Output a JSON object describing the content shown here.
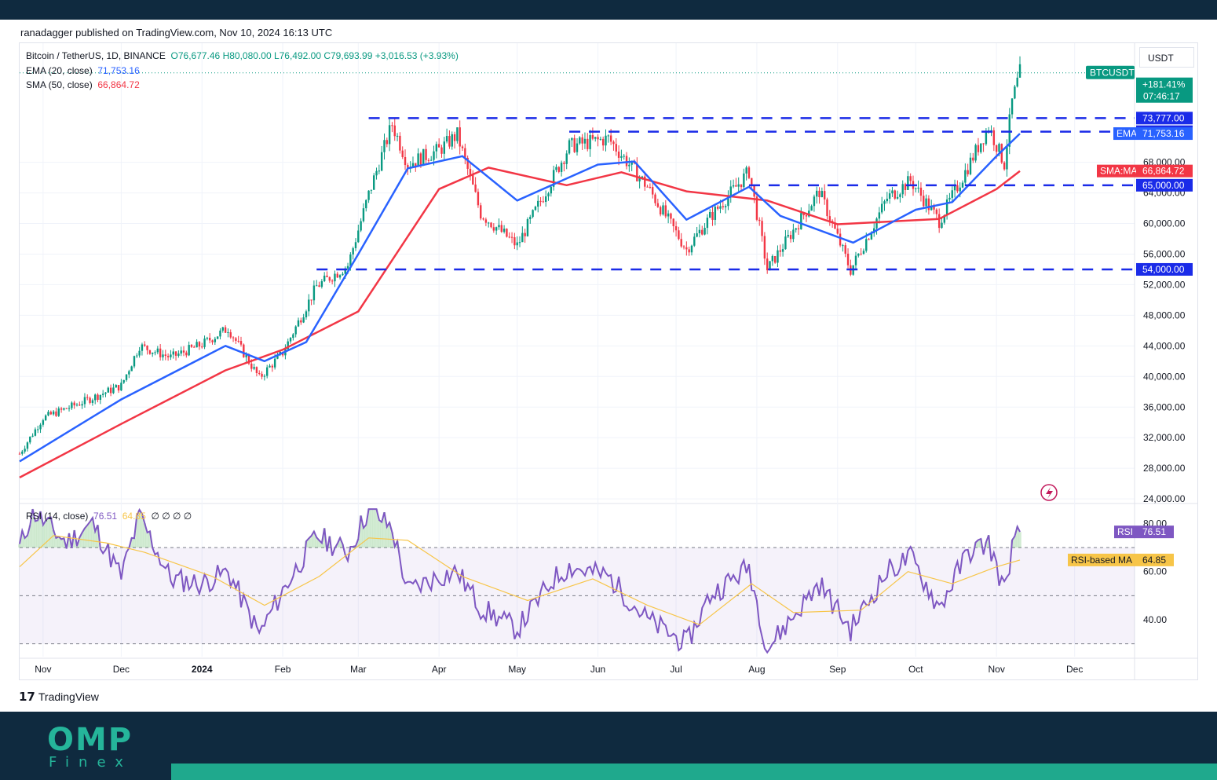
{
  "publish_line": "ranadagger published on TradingView.com, Nov 10, 2024 16:13 UTC",
  "legend": {
    "symbol": "Bitcoin / TetherUS, 1D, BINANCE",
    "ohlc": "O76,677.46 H80,080.00 L76,492.00 C79,693.99 +3,016.53 (+3.93%)",
    "ema_label": "EMA (20, close)",
    "ema_value": "71,753.16",
    "sma_label": "SMA (50, close)",
    "sma_value": "66,864.72",
    "rsi_label": "RSI (14, close)",
    "rsi_value": "76.51",
    "rsi_ma_value": "64.85",
    "rsi_extra": "∅ ∅ ∅ ∅"
  },
  "unit_button": "USDT",
  "footer": {
    "tradingview": "TradingView",
    "brand_top": "OMP",
    "brand_bottom": "Finex"
  },
  "colors": {
    "up": "#089981",
    "down": "#f23645",
    "ema": "#2962ff",
    "sma": "#f23645",
    "rsi": "#7e57c2",
    "rsi_ma": "#f7c548",
    "level": "#1a2be8",
    "brand": "#25b59a",
    "dark": "#0f2a3f"
  },
  "chart_data": [
    {
      "type": "candlestick",
      "title": "Bitcoin / TetherUS, 1D, BINANCE",
      "symbol_tag": "BTCUSDT",
      "x_labels": [
        "Nov",
        "Dec",
        "2024",
        "Feb",
        "Mar",
        "Apr",
        "May",
        "Jun",
        "Jul",
        "Aug",
        "Sep",
        "Oct",
        "Nov",
        "Dec"
      ],
      "y_ticks": [
        24000,
        28000,
        32000,
        36000,
        40000,
        44000,
        48000,
        52000,
        56000,
        60000,
        64000,
        68000
      ],
      "y_tick_labels": [
        "24,000.00",
        "28,000.00",
        "32,000.00",
        "36,000.00",
        "40,000.00",
        "44,000.00",
        "48,000.00",
        "52,000.00",
        "56,000.00",
        "60,000.00",
        "64,000.00",
        "68,000.00"
      ],
      "ylim": [
        23500,
        81000
      ],
      "grid": true,
      "last_price": 79693.99,
      "price_change_badge": "+181.41%",
      "countdown": "07:46:17",
      "closes_monthly": [
        {
          "date": "2023-10-23",
          "close": 29900
        },
        {
          "date": "2023-11-01",
          "close": 34600
        },
        {
          "date": "2023-11-15",
          "close": 36500
        },
        {
          "date": "2023-12-01",
          "close": 38800
        },
        {
          "date": "2023-12-08",
          "close": 44000
        },
        {
          "date": "2023-12-20",
          "close": 42500
        },
        {
          "date": "2024-01-01",
          "close": 44200
        },
        {
          "date": "2024-01-11",
          "close": 46300
        },
        {
          "date": "2024-01-23",
          "close": 39800
        },
        {
          "date": "2024-02-01",
          "close": 43100
        },
        {
          "date": "2024-02-14",
          "close": 51800
        },
        {
          "date": "2024-02-26",
          "close": 54500
        },
        {
          "date": "2024-03-05",
          "close": 63800
        },
        {
          "date": "2024-03-14",
          "close": 73000
        },
        {
          "date": "2024-03-20",
          "close": 67800
        },
        {
          "date": "2024-04-01",
          "close": 69600
        },
        {
          "date": "2024-04-08",
          "close": 71600
        },
        {
          "date": "2024-04-17",
          "close": 61300
        },
        {
          "date": "2024-05-01",
          "close": 57100
        },
        {
          "date": "2024-05-15",
          "close": 66200
        },
        {
          "date": "2024-05-21",
          "close": 70100
        },
        {
          "date": "2024-06-05",
          "close": 71100
        },
        {
          "date": "2024-06-20",
          "close": 64800
        },
        {
          "date": "2024-07-05",
          "close": 56600
        },
        {
          "date": "2024-07-14",
          "close": 60800
        },
        {
          "date": "2024-07-29",
          "close": 66800
        },
        {
          "date": "2024-08-05",
          "close": 54000
        },
        {
          "date": "2024-08-25",
          "close": 64200
        },
        {
          "date": "2024-09-06",
          "close": 53900
        },
        {
          "date": "2024-09-20",
          "close": 63300
        },
        {
          "date": "2024-09-29",
          "close": 65600
        },
        {
          "date": "2024-10-10",
          "close": 60300
        },
        {
          "date": "2024-10-21",
          "close": 67400
        },
        {
          "date": "2024-10-29",
          "close": 72700
        },
        {
          "date": "2024-11-04",
          "close": 67800
        },
        {
          "date": "2024-11-07",
          "close": 75900
        },
        {
          "date": "2024-11-10",
          "close": 79693.99
        }
      ],
      "ema20_monthly": [
        {
          "date": "2023-10-23",
          "value": 28900
        },
        {
          "date": "2023-12-01",
          "value": 37000
        },
        {
          "date": "2024-01-10",
          "value": 44000
        },
        {
          "date": "2024-01-25",
          "value": 42000
        },
        {
          "date": "2024-02-10",
          "value": 44500
        },
        {
          "date": "2024-03-01",
          "value": 56000
        },
        {
          "date": "2024-03-20",
          "value": 67200
        },
        {
          "date": "2024-04-10",
          "value": 68800
        },
        {
          "date": "2024-05-01",
          "value": 63000
        },
        {
          "date": "2024-06-01",
          "value": 67700
        },
        {
          "date": "2024-06-15",
          "value": 68100
        },
        {
          "date": "2024-07-05",
          "value": 60500
        },
        {
          "date": "2024-07-29",
          "value": 64800
        },
        {
          "date": "2024-08-10",
          "value": 61000
        },
        {
          "date": "2024-09-07",
          "value": 57500
        },
        {
          "date": "2024-10-01",
          "value": 61800
        },
        {
          "date": "2024-10-15",
          "value": 62800
        },
        {
          "date": "2024-11-01",
          "value": 68800
        },
        {
          "date": "2024-11-10",
          "value": 71753.16
        }
      ],
      "sma50_monthly": [
        {
          "date": "2023-10-23",
          "value": 26800
        },
        {
          "date": "2023-12-01",
          "value": 33800
        },
        {
          "date": "2024-01-10",
          "value": 40800
        },
        {
          "date": "2024-02-01",
          "value": 43500
        },
        {
          "date": "2024-03-01",
          "value": 48500
        },
        {
          "date": "2024-04-01",
          "value": 64500
        },
        {
          "date": "2024-04-20",
          "value": 67300
        },
        {
          "date": "2024-05-20",
          "value": 65000
        },
        {
          "date": "2024-06-10",
          "value": 66700
        },
        {
          "date": "2024-07-05",
          "value": 64200
        },
        {
          "date": "2024-08-05",
          "value": 63000
        },
        {
          "date": "2024-09-01",
          "value": 59900
        },
        {
          "date": "2024-10-10",
          "value": 60600
        },
        {
          "date": "2024-11-01",
          "value": 64500
        },
        {
          "date": "2024-11-10",
          "value": 66864.72
        }
      ],
      "horizontal_levels": [
        73777,
        72000,
        65000,
        54000
      ],
      "level_labels": [
        "73,777.00",
        "72,000.00",
        "65,000.00",
        "54,000.00"
      ],
      "price_tags": [
        {
          "label": "EMA",
          "value": "71,753.16"
        },
        {
          "label": "SMA:MA",
          "value": "66,864.72"
        }
      ]
    },
    {
      "type": "line",
      "title": "RSI (14, close)",
      "y_ticks": [
        40,
        60,
        80
      ],
      "y_tick_labels": [
        "40.00",
        "60.00",
        "80.00"
      ],
      "ylim": [
        25,
        87
      ],
      "bands": [
        30,
        50,
        70
      ],
      "series": [
        {
          "name": "RSI",
          "last": 76.51,
          "points": [
            {
              "date": "2023-10-23",
              "value": 70
            },
            {
              "date": "2023-10-28",
              "value": 85
            },
            {
              "date": "2023-11-10",
              "value": 72
            },
            {
              "date": "2023-11-20",
              "value": 80
            },
            {
              "date": "2023-12-01",
              "value": 58
            },
            {
              "date": "2023-12-08",
              "value": 83
            },
            {
              "date": "2023-12-20",
              "value": 57
            },
            {
              "date": "2024-01-01",
              "value": 55
            },
            {
              "date": "2024-01-11",
              "value": 60
            },
            {
              "date": "2024-01-23",
              "value": 34
            },
            {
              "date": "2024-02-01",
              "value": 52
            },
            {
              "date": "2024-02-14",
              "value": 75
            },
            {
              "date": "2024-02-26",
              "value": 68
            },
            {
              "date": "2024-03-05",
              "value": 86
            },
            {
              "date": "2024-03-14",
              "value": 78
            },
            {
              "date": "2024-03-20",
              "value": 52
            },
            {
              "date": "2024-04-01",
              "value": 58
            },
            {
              "date": "2024-04-08",
              "value": 60
            },
            {
              "date": "2024-04-17",
              "value": 45
            },
            {
              "date": "2024-05-01",
              "value": 36
            },
            {
              "date": "2024-05-15",
              "value": 57
            },
            {
              "date": "2024-05-21",
              "value": 62
            },
            {
              "date": "2024-06-05",
              "value": 58
            },
            {
              "date": "2024-06-20",
              "value": 40
            },
            {
              "date": "2024-07-05",
              "value": 30
            },
            {
              "date": "2024-07-14",
              "value": 50
            },
            {
              "date": "2024-07-29",
              "value": 62
            },
            {
              "date": "2024-08-05",
              "value": 28
            },
            {
              "date": "2024-08-25",
              "value": 55
            },
            {
              "date": "2024-09-06",
              "value": 36
            },
            {
              "date": "2024-09-20",
              "value": 60
            },
            {
              "date": "2024-09-29",
              "value": 66
            },
            {
              "date": "2024-10-10",
              "value": 45
            },
            {
              "date": "2024-10-21",
              "value": 68
            },
            {
              "date": "2024-10-29",
              "value": 72
            },
            {
              "date": "2024-11-04",
              "value": 52
            },
            {
              "date": "2024-11-07",
              "value": 70
            },
            {
              "date": "2024-11-10",
              "value": 76.51
            }
          ]
        },
        {
          "name": "RSI-based MA",
          "last": 64.85,
          "points": [
            {
              "date": "2023-10-23",
              "value": 62
            },
            {
              "date": "2023-11-05",
              "value": 75
            },
            {
              "date": "2023-11-25",
              "value": 72
            },
            {
              "date": "2023-12-10",
              "value": 68
            },
            {
              "date": "2024-01-05",
              "value": 58
            },
            {
              "date": "2024-01-25",
              "value": 46
            },
            {
              "date": "2024-02-15",
              "value": 58
            },
            {
              "date": "2024-03-05",
              "value": 74
            },
            {
              "date": "2024-03-20",
              "value": 73
            },
            {
              "date": "2024-04-10",
              "value": 58
            },
            {
              "date": "2024-05-05",
              "value": 48
            },
            {
              "date": "2024-05-30",
              "value": 57
            },
            {
              "date": "2024-06-20",
              "value": 46
            },
            {
              "date": "2024-07-10",
              "value": 38
            },
            {
              "date": "2024-07-30",
              "value": 55
            },
            {
              "date": "2024-08-15",
              "value": 43
            },
            {
              "date": "2024-09-10",
              "value": 44
            },
            {
              "date": "2024-09-28",
              "value": 60
            },
            {
              "date": "2024-10-15",
              "value": 55
            },
            {
              "date": "2024-11-01",
              "value": 62
            },
            {
              "date": "2024-11-10",
              "value": 64.85
            }
          ]
        }
      ],
      "tags": [
        {
          "label": "RSI",
          "value": "76.51"
        },
        {
          "label": "RSI-based MA",
          "value": "64.85"
        }
      ]
    }
  ]
}
